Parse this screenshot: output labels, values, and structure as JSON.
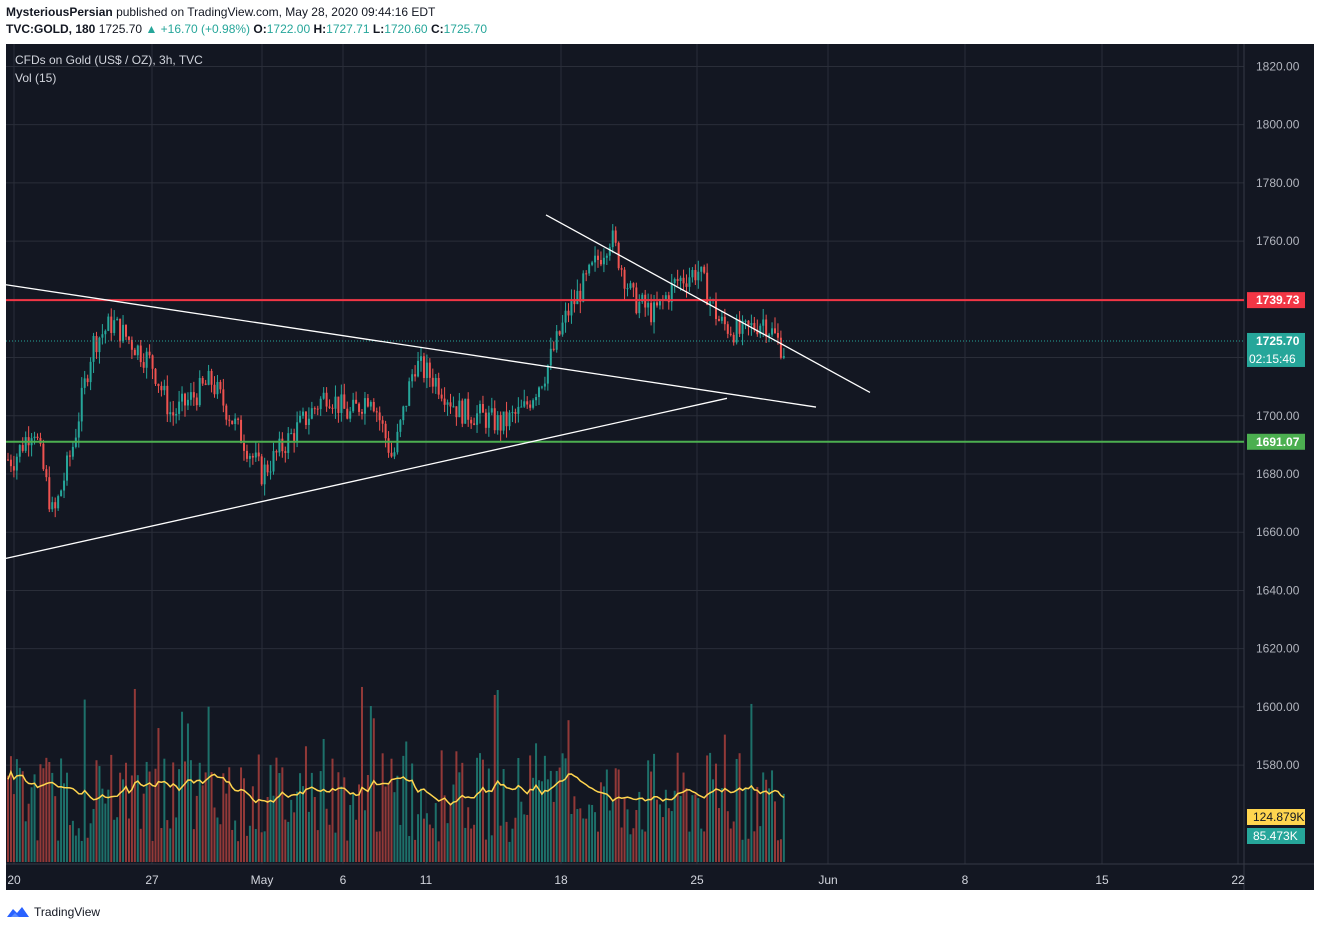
{
  "header": {
    "publisher": "MysteriousPersian",
    "published_text": "published on TradingView.com, May 28, 2020 09:44:16 EDT",
    "symbol": "TVC:GOLD, 180",
    "last": "1725.70",
    "change": "▲ +16.70 (+0.98%)",
    "o_label": "O:",
    "o_value": "1722.00",
    "h_label": "H:",
    "h_value": "1727.71",
    "l_label": "L:",
    "l_value": "1720.60",
    "c_label": "C:",
    "c_value": "1725.70"
  },
  "legend": {
    "title": "CFDs on Gold (US$ / OZ), 3h, TVC",
    "volume": "Vol (15)"
  },
  "footer": {
    "brand": "TradingView"
  },
  "colors": {
    "background": "#131722",
    "grid": "#2a2e39",
    "up": "#26a69a",
    "down": "#ef5350",
    "resistance": "#f23645",
    "support": "#4caf50",
    "trendline": "#ffffff",
    "volume_ma": "#ffd54f"
  },
  "chart_data": {
    "type": "candlestick",
    "symbol": "TVC:GOLD",
    "interval": "3h",
    "x_ticks": [
      "20",
      "27",
      "May",
      "6",
      "11",
      "18",
      "25",
      "Jun",
      "8",
      "15",
      "22"
    ],
    "y_ticks": [
      "1820.00",
      "1800.00",
      "1780.00",
      "1760.00",
      "1740.00",
      "1720.00",
      "1700.00",
      "1680.00",
      "1660.00",
      "1640.00",
      "1620.00",
      "1600.00",
      "1580.00"
    ],
    "ylim": [
      1565,
      1826
    ],
    "horizontal_levels": [
      {
        "label": "1739.73",
        "value": 1739.73,
        "color": "#f23645"
      },
      {
        "label": "1691.07",
        "value": 1691.07,
        "color": "#4caf50"
      }
    ],
    "last_price": {
      "label": "1725.70",
      "value": 1725.7,
      "countdown": "02:15:46"
    },
    "volume_labels": [
      {
        "label": "124.879K",
        "color": "#ffd54f"
      },
      {
        "label": "85.473K",
        "color": "#26a69a"
      }
    ],
    "price_path": [
      {
        "date": "Apr 20",
        "price": 1685
      },
      {
        "date": "Apr 21",
        "price": 1697
      },
      {
        "date": "Apr 22",
        "price": 1665
      },
      {
        "date": "Apr 23",
        "price": 1690
      },
      {
        "date": "Apr 24",
        "price": 1725
      },
      {
        "date": "Apr 25",
        "price": 1732
      },
      {
        "date": "Apr 27",
        "price": 1718
      },
      {
        "date": "Apr 28",
        "price": 1700
      },
      {
        "date": "Apr 29",
        "price": 1706
      },
      {
        "date": "Apr 30",
        "price": 1712
      },
      {
        "date": "May 1",
        "price": 1680
      },
      {
        "date": "May 2",
        "price": 1690
      },
      {
        "date": "May 4",
        "price": 1708
      },
      {
        "date": "May 5",
        "price": 1700
      },
      {
        "date": "May 6",
        "price": 1708
      },
      {
        "date": "May 7",
        "price": 1685
      },
      {
        "date": "May 8",
        "price": 1718
      },
      {
        "date": "May 9",
        "price": 1712
      },
      {
        "date": "May 10",
        "price": 1702
      },
      {
        "date": "May 11",
        "price": 1700
      },
      {
        "date": "May 12",
        "price": 1697
      },
      {
        "date": "May 13",
        "price": 1702
      },
      {
        "date": "May 14",
        "price": 1715
      },
      {
        "date": "May 15",
        "price": 1735
      },
      {
        "date": "May 16",
        "price": 1748
      },
      {
        "date": "May 17",
        "price": 1762
      },
      {
        "date": "May 18",
        "price": 1740
      },
      {
        "date": "May 19",
        "price": 1735
      },
      {
        "date": "May 20",
        "price": 1746
      },
      {
        "date": "May 21",
        "price": 1750
      },
      {
        "date": "May 22",
        "price": 1732
      },
      {
        "date": "May 23",
        "price": 1728
      },
      {
        "date": "May 24",
        "price": 1733
      },
      {
        "date": "May 25",
        "price": 1722
      },
      {
        "date": "May 26",
        "price": 1726
      },
      {
        "date": "May 27",
        "price": 1709
      },
      {
        "date": "May 27 PM",
        "price": 1702
      },
      {
        "date": "May 28",
        "price": 1725.7
      }
    ],
    "trendlines": [
      {
        "from": {
          "date": "Apr 20",
          "price": 1651
        },
        "to": {
          "date": "May 26",
          "price": 1706
        }
      },
      {
        "from": {
          "date": "Apr 20",
          "price": 1745
        },
        "to": {
          "date": "May 28",
          "price": 1703
        }
      },
      {
        "from": {
          "date": "May 17",
          "price": 1769
        },
        "to": {
          "date": "May 31",
          "price": 1708
        }
      }
    ]
  }
}
